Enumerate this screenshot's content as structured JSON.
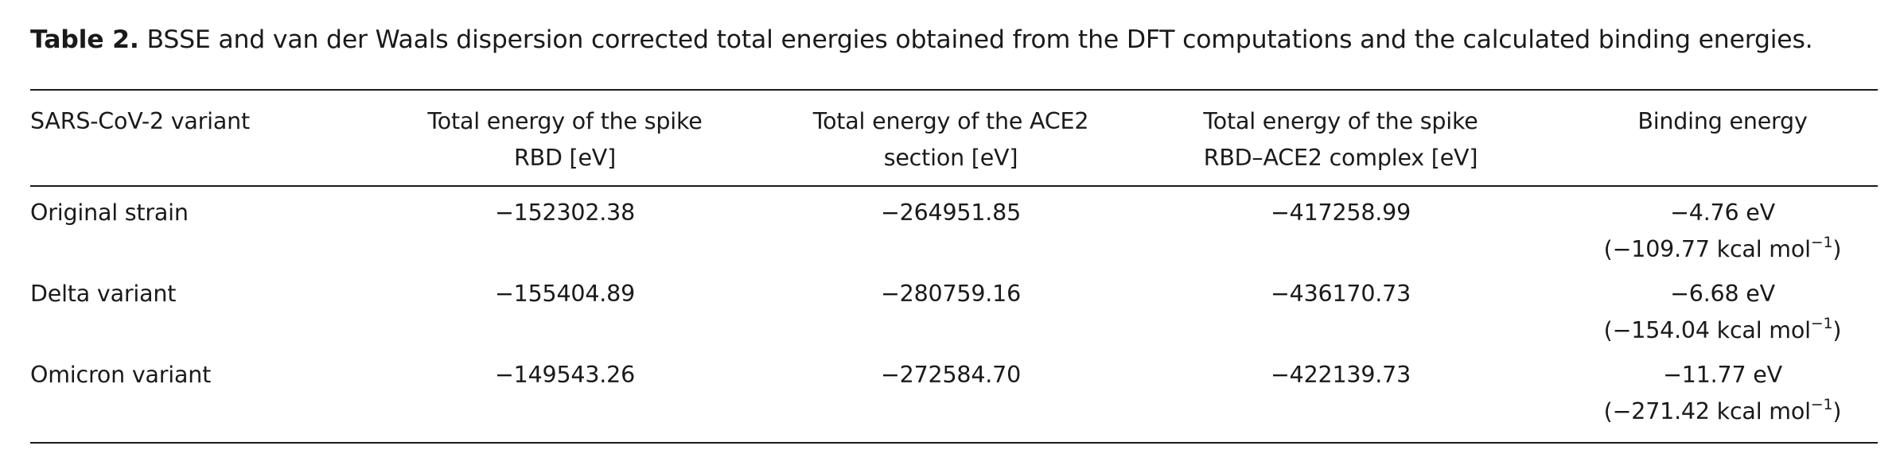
{
  "caption": {
    "label": "Table 2.",
    "text": " BSSE and van der Waals dispersion corrected total energies obtained from the DFT computations and the calculated binding energies."
  },
  "table": {
    "headers": [
      {
        "line1": "SARS-CoV-2 variant",
        "line2": ""
      },
      {
        "line1": "Total energy of the spike",
        "line2": "RBD [eV]"
      },
      {
        "line1": "Total energy of the ACE2",
        "line2": "section [eV]"
      },
      {
        "line1": "Total energy of the spike",
        "line2": "RBD–ACE2 complex [eV]"
      },
      {
        "line1": "Binding energy",
        "line2": ""
      }
    ],
    "rows": [
      {
        "variant": "Original strain",
        "spike_rbd": "−152302.38",
        "ace2": "−264951.85",
        "complex": "−417258.99",
        "binding_ev": "−4.76 eV",
        "binding_kcal_prefix": "(−109.77 kcal mol",
        "binding_kcal_sup": "−1",
        "binding_kcal_suffix": ")"
      },
      {
        "variant": "Delta variant",
        "spike_rbd": "−155404.89",
        "ace2": "−280759.16",
        "complex": "−436170.73",
        "binding_ev": "−6.68 eV",
        "binding_kcal_prefix": "(−154.04 kcal mol",
        "binding_kcal_sup": "−1",
        "binding_kcal_suffix": ")"
      },
      {
        "variant": "Omicron variant",
        "spike_rbd": "−149543.26",
        "ace2": "−272584.70",
        "complex": "−422139.73",
        "binding_ev": "−11.77 eV",
        "binding_kcal_prefix": "(−271.42 kcal mol",
        "binding_kcal_sup": "−1",
        "binding_kcal_suffix": ")"
      }
    ]
  }
}
